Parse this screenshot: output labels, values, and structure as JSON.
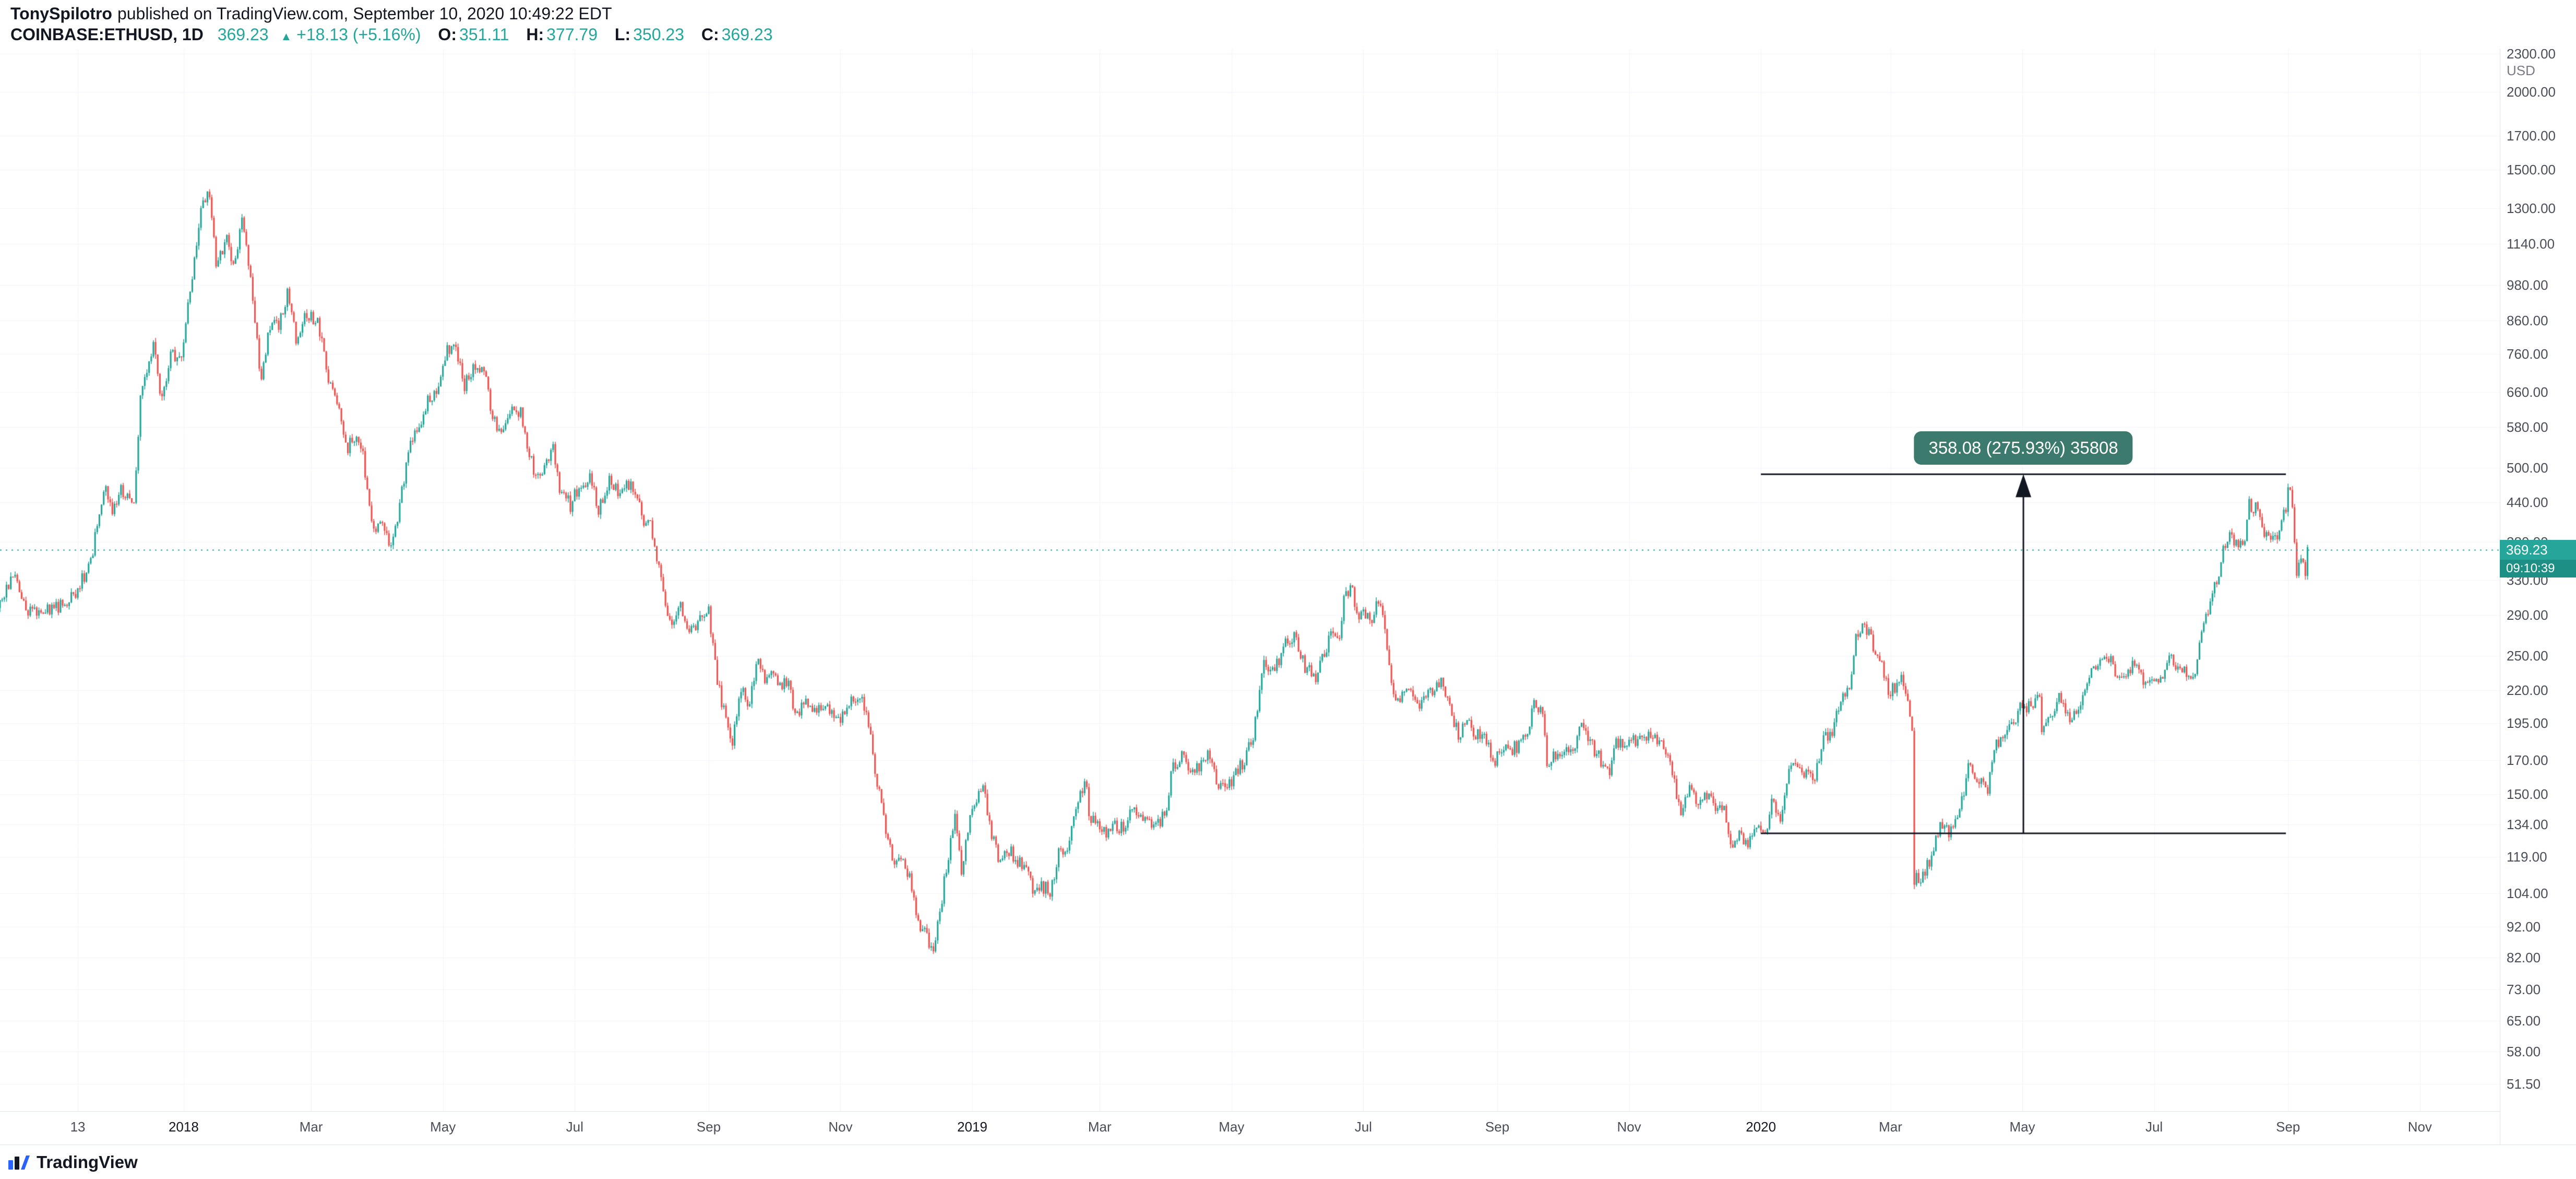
{
  "header": {
    "author": "TonySpilotro",
    "published": "published on TradingView.com, September 10, 2020 10:49:22 EDT",
    "symbol": "COINBASE:ETHUSD, 1D",
    "last": "369.23",
    "change_icon": "▲",
    "change": "+18.13 (+5.16%)",
    "ohlc": [
      {
        "label": "O:",
        "value": "351.11"
      },
      {
        "label": "H:",
        "value": "377.79"
      },
      {
        "label": "L:",
        "value": "350.23"
      },
      {
        "label": "C:",
        "value": "369.23"
      }
    ]
  },
  "price_axis": {
    "unit": "USD",
    "ticks": [
      "2300.00",
      "2000.00",
      "1700.00",
      "1500.00",
      "1300.00",
      "1140.00",
      "980.00",
      "860.00",
      "760.00",
      "660.00",
      "580.00",
      "500.00",
      "440.00",
      "380.00",
      "330.00",
      "290.00",
      "250.00",
      "220.00",
      "195.00",
      "170.00",
      "150.00",
      "134.00",
      "119.00",
      "104.00",
      "92.00",
      "82.00",
      "73.00",
      "65.00",
      "58.00",
      "51.50"
    ],
    "last_label": "369.23",
    "countdown": "09:10:39",
    "label_color": "#26a69a",
    "countdown_color": "#1d8f85"
  },
  "time_axis": {
    "labels": [
      {
        "label": "13",
        "date": "2017-11-13",
        "major": false
      },
      {
        "label": "2018",
        "date": "2018-01-01",
        "major": true
      },
      {
        "label": "Mar",
        "date": "2018-03-01",
        "major": false
      },
      {
        "label": "May",
        "date": "2018-05-01",
        "major": false
      },
      {
        "label": "Jul",
        "date": "2018-07-01",
        "major": false
      },
      {
        "label": "Sep",
        "date": "2018-09-01",
        "major": false
      },
      {
        "label": "Nov",
        "date": "2018-11-01",
        "major": false
      },
      {
        "label": "2019",
        "date": "2019-01-01",
        "major": true
      },
      {
        "label": "Mar",
        "date": "2019-03-01",
        "major": false
      },
      {
        "label": "May",
        "date": "2019-05-01",
        "major": false
      },
      {
        "label": "Jul",
        "date": "2019-07-01",
        "major": false
      },
      {
        "label": "Sep",
        "date": "2019-09-01",
        "major": false
      },
      {
        "label": "Nov",
        "date": "2019-11-01",
        "major": false
      },
      {
        "label": "2020",
        "date": "2020-01-01",
        "major": true
      },
      {
        "label": "Mar",
        "date": "2020-03-01",
        "major": false
      },
      {
        "label": "May",
        "date": "2020-05-01",
        "major": false
      },
      {
        "label": "Jul",
        "date": "2020-07-01",
        "major": false
      },
      {
        "label": "Sep",
        "date": "2020-09-01",
        "major": false
      },
      {
        "label": "Nov",
        "date": "2020-11-01",
        "major": false
      }
    ]
  },
  "footer": {
    "brand": "TradingView"
  },
  "chart_data": {
    "type": "candlestick",
    "symbol": "COINBASE:ETHUSD",
    "timeframe": "1D",
    "x_axis": {
      "start": "2017-10-08",
      "end": "2020-12-08"
    },
    "y_axis": {
      "min": 46.6,
      "max": 2340,
      "scale": "log",
      "unit": "USD"
    },
    "last": {
      "price": 369.23,
      "time_to_close": "09:10:39"
    },
    "up_color": "#26a69a",
    "down_color": "#ef5350",
    "grid_color": "#f0f3fa",
    "measurement": {
      "label": "358.08 (275.93%) 35808",
      "from_price": 129.77,
      "to_price": 487.85,
      "from_date": "2020-01-01",
      "to_date": "2020-08-31",
      "color": "#3b7a6c",
      "line_color": "#131722"
    },
    "close_keypoints": [
      [
        "2017-10-08",
        300
      ],
      [
        "2017-10-14",
        335
      ],
      [
        "2017-10-21",
        295
      ],
      [
        "2017-10-28",
        296
      ],
      [
        "2017-11-04",
        300
      ],
      [
        "2017-11-12",
        314
      ],
      [
        "2017-11-19",
        354
      ],
      [
        "2017-11-25",
        465
      ],
      [
        "2017-11-29",
        430
      ],
      [
        "2017-12-03",
        460
      ],
      [
        "2017-12-09",
        440
      ],
      [
        "2017-12-12",
        650
      ],
      [
        "2017-12-18",
        785
      ],
      [
        "2017-12-22",
        640
      ],
      [
        "2017-12-26",
        760
      ],
      [
        "2017-12-31",
        740
      ],
      [
        "2018-01-04",
        960
      ],
      [
        "2018-01-09",
        1290
      ],
      [
        "2018-01-13",
        1385
      ],
      [
        "2018-01-16",
        1050
      ],
      [
        "2018-01-21",
        1160
      ],
      [
        "2018-01-24",
        1050
      ],
      [
        "2018-01-28",
        1240
      ],
      [
        "2018-02-01",
        1020
      ],
      [
        "2018-02-06",
        680
      ],
      [
        "2018-02-10",
        850
      ],
      [
        "2018-02-14",
        840
      ],
      [
        "2018-02-18",
        945
      ],
      [
        "2018-02-22",
        810
      ],
      [
        "2018-02-25",
        860
      ],
      [
        "2018-03-01",
        870
      ],
      [
        "2018-03-04",
        865
      ],
      [
        "2018-03-09",
        700
      ],
      [
        "2018-03-14",
        615
      ],
      [
        "2018-03-18",
        540
      ],
      [
        "2018-03-21",
        560
      ],
      [
        "2018-03-25",
        520
      ],
      [
        "2018-03-30",
        395
      ],
      [
        "2018-04-03",
        415
      ],
      [
        "2018-04-06",
        370
      ],
      [
        "2018-04-10",
        415
      ],
      [
        "2018-04-15",
        530
      ],
      [
        "2018-04-20",
        580
      ],
      [
        "2018-04-24",
        640
      ],
      [
        "2018-04-29",
        670
      ],
      [
        "2018-05-03",
        770
      ],
      [
        "2018-05-06",
        790
      ],
      [
        "2018-05-11",
        675
      ],
      [
        "2018-05-15",
        730
      ],
      [
        "2018-05-20",
        715
      ],
      [
        "2018-05-24",
        600
      ],
      [
        "2018-05-28",
        565
      ],
      [
        "2018-06-02",
        620
      ],
      [
        "2018-06-06",
        610
      ],
      [
        "2018-06-10",
        530
      ],
      [
        "2018-06-13",
        475
      ],
      [
        "2018-06-17",
        500
      ],
      [
        "2018-06-21",
        535
      ],
      [
        "2018-06-24",
        465
      ],
      [
        "2018-06-29",
        435
      ],
      [
        "2018-07-01",
        455
      ],
      [
        "2018-07-05",
        470
      ],
      [
        "2018-07-08",
        490
      ],
      [
        "2018-07-12",
        430
      ],
      [
        "2018-07-17",
        480
      ],
      [
        "2018-07-21",
        460
      ],
      [
        "2018-07-25",
        475
      ],
      [
        "2018-07-29",
        460
      ],
      [
        "2018-08-02",
        410
      ],
      [
        "2018-08-05",
        405
      ],
      [
        "2018-08-08",
        355
      ],
      [
        "2018-08-11",
        320
      ],
      [
        "2018-08-14",
        280
      ],
      [
        "2018-08-19",
        300
      ],
      [
        "2018-08-22",
        270
      ],
      [
        "2018-08-26",
        275
      ],
      [
        "2018-08-29",
        290
      ],
      [
        "2018-09-01",
        295
      ],
      [
        "2018-09-05",
        228
      ],
      [
        "2018-09-09",
        197
      ],
      [
        "2018-09-12",
        183
      ],
      [
        "2018-09-16",
        220
      ],
      [
        "2018-09-20",
        210
      ],
      [
        "2018-09-23",
        245
      ],
      [
        "2018-09-27",
        230
      ],
      [
        "2018-09-30",
        233
      ],
      [
        "2018-10-04",
        222
      ],
      [
        "2018-10-08",
        228
      ],
      [
        "2018-10-11",
        200
      ],
      [
        "2018-10-15",
        210
      ],
      [
        "2018-10-19",
        205
      ],
      [
        "2018-10-23",
        203
      ],
      [
        "2018-10-28",
        205
      ],
      [
        "2018-11-01",
        198
      ],
      [
        "2018-11-05",
        210
      ],
      [
        "2018-11-09",
        212
      ],
      [
        "2018-11-13",
        207
      ],
      [
        "2018-11-15",
        183
      ],
      [
        "2018-11-19",
        150
      ],
      [
        "2018-11-23",
        124
      ],
      [
        "2018-11-26",
        117
      ],
      [
        "2018-11-29",
        120
      ],
      [
        "2018-12-03",
        110
      ],
      [
        "2018-12-07",
        93
      ],
      [
        "2018-12-10",
        90
      ],
      [
        "2018-12-14",
        84
      ],
      [
        "2018-12-17",
        96
      ],
      [
        "2018-12-20",
        115
      ],
      [
        "2018-12-24",
        138
      ],
      [
        "2018-12-27",
        114
      ],
      [
        "2018-12-31",
        136
      ],
      [
        "2019-01-04",
        153
      ],
      [
        "2019-01-06",
        157
      ],
      [
        "2019-01-10",
        128
      ],
      [
        "2019-01-14",
        117
      ],
      [
        "2019-01-18",
        122
      ],
      [
        "2019-01-22",
        117
      ],
      [
        "2019-01-27",
        113
      ],
      [
        "2019-01-29",
        104
      ],
      [
        "2019-02-02",
        107
      ],
      [
        "2019-02-06",
        105
      ],
      [
        "2019-02-10",
        120
      ],
      [
        "2019-02-14",
        122
      ],
      [
        "2019-02-18",
        145
      ],
      [
        "2019-02-23",
        157
      ],
      [
        "2019-02-24",
        135
      ],
      [
        "2019-02-28",
        136
      ],
      [
        "2019-03-04",
        128
      ],
      [
        "2019-03-08",
        133
      ],
      [
        "2019-03-12",
        133
      ],
      [
        "2019-03-16",
        140
      ],
      [
        "2019-03-20",
        138
      ],
      [
        "2019-03-24",
        136
      ],
      [
        "2019-03-28",
        135
      ],
      [
        "2019-04-01",
        141
      ],
      [
        "2019-04-03",
        162
      ],
      [
        "2019-04-08",
        175
      ],
      [
        "2019-04-11",
        164
      ],
      [
        "2019-04-16",
        166
      ],
      [
        "2019-04-20",
        173
      ],
      [
        "2019-04-25",
        155
      ],
      [
        "2019-04-29",
        154
      ],
      [
        "2019-05-03",
        162
      ],
      [
        "2019-05-07",
        170
      ],
      [
        "2019-05-11",
        185
      ],
      [
        "2019-05-14",
        217
      ],
      [
        "2019-05-16",
        248
      ],
      [
        "2019-05-19",
        234
      ],
      [
        "2019-05-23",
        245
      ],
      [
        "2019-05-27",
        265
      ],
      [
        "2019-05-30",
        268
      ],
      [
        "2019-06-02",
        250
      ],
      [
        "2019-06-04",
        240
      ],
      [
        "2019-06-09",
        232
      ],
      [
        "2019-06-13",
        255
      ],
      [
        "2019-06-16",
        268
      ],
      [
        "2019-06-20",
        270
      ],
      [
        "2019-06-22",
        310
      ],
      [
        "2019-06-26",
        320
      ],
      [
        "2019-06-28",
        290
      ],
      [
        "2019-07-01",
        295
      ],
      [
        "2019-07-05",
        288
      ],
      [
        "2019-07-08",
        307
      ],
      [
        "2019-07-10",
        290
      ],
      [
        "2019-07-14",
        225
      ],
      [
        "2019-07-17",
        210
      ],
      [
        "2019-07-20",
        222
      ],
      [
        "2019-07-24",
        215
      ],
      [
        "2019-07-28",
        208
      ],
      [
        "2019-08-01",
        218
      ],
      [
        "2019-08-06",
        226
      ],
      [
        "2019-08-10",
        207
      ],
      [
        "2019-08-14",
        187
      ],
      [
        "2019-08-18",
        195
      ],
      [
        "2019-08-22",
        187
      ],
      [
        "2019-08-26",
        187
      ],
      [
        "2019-08-30",
        168
      ],
      [
        "2019-09-03",
        178
      ],
      [
        "2019-09-07",
        176
      ],
      [
        "2019-09-11",
        180
      ],
      [
        "2019-09-15",
        188
      ],
      [
        "2019-09-18",
        208
      ],
      [
        "2019-09-22",
        201
      ],
      [
        "2019-09-24",
        166
      ],
      [
        "2019-09-28",
        173
      ],
      [
        "2019-10-02",
        175
      ],
      [
        "2019-10-06",
        176
      ],
      [
        "2019-10-10",
        192
      ],
      [
        "2019-10-14",
        181
      ],
      [
        "2019-10-18",
        172
      ],
      [
        "2019-10-23",
        162
      ],
      [
        "2019-10-26",
        181
      ],
      [
        "2019-10-30",
        183
      ],
      [
        "2019-11-03",
        182
      ],
      [
        "2019-11-07",
        187
      ],
      [
        "2019-11-11",
        185
      ],
      [
        "2019-11-15",
        180
      ],
      [
        "2019-11-19",
        176
      ],
      [
        "2019-11-22",
        155
      ],
      [
        "2019-11-25",
        140
      ],
      [
        "2019-11-29",
        152
      ],
      [
        "2019-12-03",
        147
      ],
      [
        "2019-12-07",
        148
      ],
      [
        "2019-12-11",
        143
      ],
      [
        "2019-12-15",
        142
      ],
      [
        "2019-12-18",
        122
      ],
      [
        "2019-12-22",
        128
      ],
      [
        "2019-12-26",
        125
      ],
      [
        "2019-12-30",
        132
      ],
      [
        "2020-01-03",
        130
      ],
      [
        "2020-01-06",
        144
      ],
      [
        "2020-01-10",
        138
      ],
      [
        "2020-01-14",
        165
      ],
      [
        "2020-01-18",
        166
      ],
      [
        "2020-01-22",
        162
      ],
      [
        "2020-01-26",
        160
      ],
      [
        "2020-01-30",
        184
      ],
      [
        "2020-02-03",
        190
      ],
      [
        "2020-02-07",
        213
      ],
      [
        "2020-02-11",
        224
      ],
      [
        "2020-02-14",
        265
      ],
      [
        "2020-02-18",
        282
      ],
      [
        "2020-02-21",
        265
      ],
      [
        "2020-02-25",
        246
      ],
      [
        "2020-02-29",
        218
      ],
      [
        "2020-03-04",
        224
      ],
      [
        "2020-03-07",
        229
      ],
      [
        "2020-03-11",
        194
      ],
      [
        "2020-03-12",
        110
      ],
      [
        "2020-03-16",
        111
      ],
      [
        "2020-03-19",
        117
      ],
      [
        "2020-03-24",
        135
      ],
      [
        "2020-03-28",
        131
      ],
      [
        "2020-04-01",
        135
      ],
      [
        "2020-04-06",
        165
      ],
      [
        "2020-04-10",
        158
      ],
      [
        "2020-04-15",
        153
      ],
      [
        "2020-04-19",
        180
      ],
      [
        "2020-04-23",
        185
      ],
      [
        "2020-04-27",
        197
      ],
      [
        "2020-04-30",
        206
      ],
      [
        "2020-05-04",
        207
      ],
      [
        "2020-05-09",
        212
      ],
      [
        "2020-05-10",
        188
      ],
      [
        "2020-05-14",
        200
      ],
      [
        "2020-05-18",
        215
      ],
      [
        "2020-05-22",
        199
      ],
      [
        "2020-05-26",
        203
      ],
      [
        "2020-05-30",
        221
      ],
      [
        "2020-06-02",
        238
      ],
      [
        "2020-06-06",
        241
      ],
      [
        "2020-06-10",
        248
      ],
      [
        "2020-06-14",
        232
      ],
      [
        "2020-06-18",
        231
      ],
      [
        "2020-06-22",
        243
      ],
      [
        "2020-06-26",
        229
      ],
      [
        "2020-06-30",
        226
      ],
      [
        "2020-07-04",
        229
      ],
      [
        "2020-07-08",
        247
      ],
      [
        "2020-07-12",
        240
      ],
      [
        "2020-07-16",
        233
      ],
      [
        "2020-07-20",
        236
      ],
      [
        "2020-07-24",
        279
      ],
      [
        "2020-07-28",
        317
      ],
      [
        "2020-08-01",
        346
      ],
      [
        "2020-08-02",
        372
      ],
      [
        "2020-08-04",
        390
      ],
      [
        "2020-08-08",
        379
      ],
      [
        "2020-08-12",
        387
      ],
      [
        "2020-08-14",
        437
      ],
      [
        "2020-08-17",
        430
      ],
      [
        "2020-08-21",
        387
      ],
      [
        "2020-08-25",
        383
      ],
      [
        "2020-08-28",
        395
      ],
      [
        "2020-08-31",
        434
      ],
      [
        "2020-09-01",
        475
      ],
      [
        "2020-09-03",
        441
      ],
      [
        "2020-09-05",
        335
      ],
      [
        "2020-09-07",
        353
      ],
      [
        "2020-09-09",
        337
      ],
      [
        "2020-09-10",
        369.23
      ]
    ]
  }
}
